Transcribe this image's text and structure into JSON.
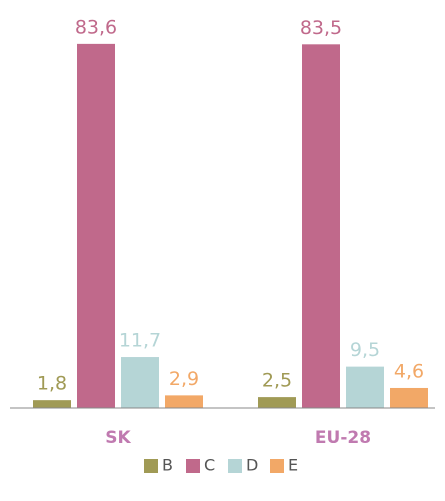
{
  "chart_data": {
    "type": "bar",
    "categories": [
      "SK",
      "EU-28"
    ],
    "series": [
      {
        "name": "B",
        "color": "#a09a55",
        "values": [
          1.8,
          2.5
        ],
        "value_labels": [
          "1,8",
          "2,5"
        ]
      },
      {
        "name": "C",
        "color": "#c0698b",
        "values": [
          83.6,
          83.5
        ],
        "value_labels": [
          "83,6",
          "83,5"
        ]
      },
      {
        "name": "D",
        "color": "#b5d5d6",
        "values": [
          11.7,
          9.5
        ],
        "value_labels": [
          "11,7",
          "9,5"
        ]
      },
      {
        "name": "E",
        "color": "#f2a867",
        "values": [
          2.9,
          4.6
        ],
        "value_labels": [
          "2,9",
          "4,6"
        ]
      }
    ],
    "ylim": [
      0,
      90
    ]
  }
}
